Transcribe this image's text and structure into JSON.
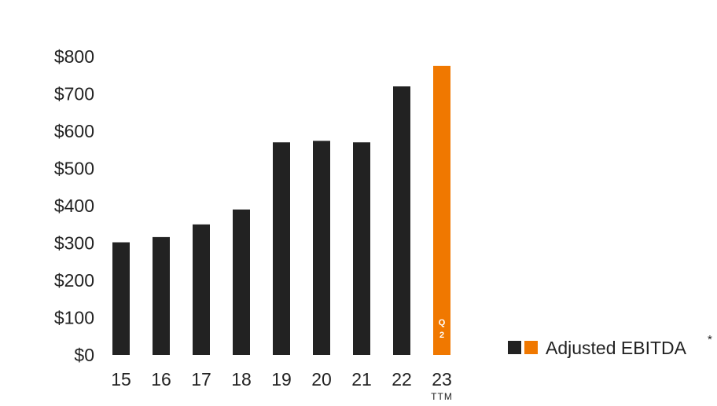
{
  "chart_data": {
    "type": "bar",
    "categories": [
      "15",
      "16",
      "17",
      "18",
      "19",
      "20",
      "21",
      "22",
      "23"
    ],
    "category_sublabels": [
      "",
      "",
      "",
      "",
      "",
      "",
      "",
      "",
      "TTM"
    ],
    "values": [
      302,
      316,
      350,
      390,
      570,
      574,
      570,
      720,
      775
    ],
    "series_name": "Adjusted EBITDA",
    "series_name_marker": "*",
    "highlight_index": 8,
    "highlight_bar_label": [
      "Q",
      "2"
    ],
    "y_ticks": [
      "$0",
      "$100",
      "$200",
      "$300",
      "$400",
      "$500",
      "$600",
      "$700",
      "$800"
    ],
    "ylim": [
      0,
      800
    ],
    "grid": false,
    "legend_position": "right",
    "colors": {
      "base": "#222222",
      "highlight": "#f07800"
    }
  }
}
